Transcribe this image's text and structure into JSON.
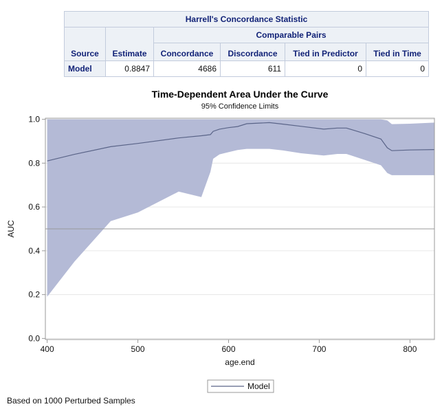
{
  "table": {
    "title": "Harrell's Concordance Statistic",
    "group_header": "Comparable Pairs",
    "columns": [
      "Source",
      "Estimate",
      "Concordance",
      "Discordance",
      "Tied in Predictor",
      "Tied in Time"
    ],
    "rows": [
      {
        "source": "Model",
        "estimate": "0.8847",
        "concordance": "4686",
        "discordance": "611",
        "tied_predictor": "0",
        "tied_time": "0"
      }
    ]
  },
  "chart_data": {
    "type": "area",
    "title": "Time-Dependent Area Under the Curve",
    "subtitle": "95% Confidence Limits",
    "xlabel": "age.end",
    "ylabel": "AUC",
    "xlim": [
      398,
      827
    ],
    "ylim": [
      -0.005,
      1.005
    ],
    "xticks": [
      400,
      500,
      600,
      700,
      800
    ],
    "yticks": [
      0.0,
      0.2,
      0.4,
      0.6,
      0.8,
      1.0
    ],
    "ytick_labels": [
      "0.0",
      "0.2",
      "0.4",
      "0.6",
      "0.8",
      "1.0"
    ],
    "reference_line": 0.5,
    "grid": true,
    "legend_position": "bottom-center",
    "colors": {
      "band": "#b4bad6",
      "line": "#5a6488",
      "reference": "#999999",
      "grid": "#e6e6e6",
      "axis": "#9a9a9a"
    },
    "series": [
      {
        "name": "Model",
        "x": [
          400,
          430,
          470,
          500,
          545,
          570,
          580,
          583,
          590,
          600,
          610,
          620,
          645,
          660,
          680,
          705,
          720,
          730,
          750,
          768,
          775,
          780,
          800,
          827
        ],
        "auc": [
          0.81,
          0.84,
          0.875,
          0.89,
          0.915,
          0.925,
          0.93,
          0.945,
          0.955,
          0.962,
          0.967,
          0.98,
          0.985,
          0.978,
          0.968,
          0.955,
          0.96,
          0.96,
          0.935,
          0.91,
          0.87,
          0.857,
          0.86,
          0.862
        ],
        "lower": [
          0.19,
          0.35,
          0.535,
          0.575,
          0.67,
          0.645,
          0.76,
          0.82,
          0.84,
          0.85,
          0.86,
          0.865,
          0.865,
          0.858,
          0.845,
          0.835,
          0.842,
          0.842,
          0.815,
          0.79,
          0.755,
          0.745,
          0.745,
          0.745
        ],
        "upper": [
          1.0,
          1.0,
          1.0,
          1.0,
          1.0,
          1.0,
          1.0,
          1.0,
          1.0,
          1.0,
          1.0,
          1.0,
          1.0,
          1.0,
          1.0,
          1.0,
          1.0,
          1.0,
          1.0,
          1.0,
          0.995,
          0.978,
          0.98,
          0.985
        ]
      }
    ]
  },
  "footnote": "Based on 1000 Perturbed Samples"
}
